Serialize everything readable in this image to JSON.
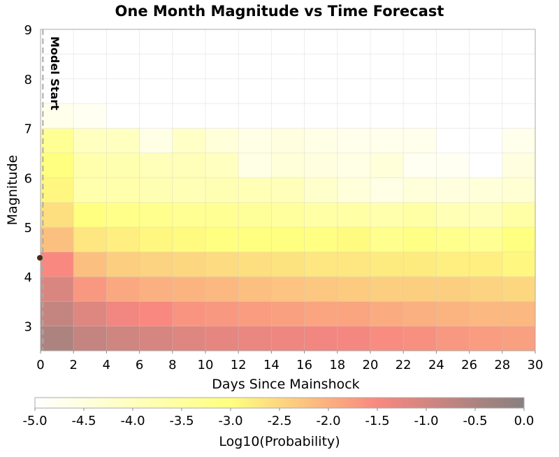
{
  "chart_data": {
    "type": "heatmap",
    "title": "One Month Magnitude vs Time Forecast",
    "xlabel": "Days Since Mainshock",
    "ylabel": "Magnitude",
    "xlim": [
      0,
      30
    ],
    "ylim": [
      2.5,
      9
    ],
    "grid": true,
    "x_ticks": [
      "0",
      "2",
      "4",
      "6",
      "8",
      "10",
      "12",
      "14",
      "16",
      "18",
      "20",
      "22",
      "24",
      "26",
      "28",
      "30"
    ],
    "y_ticks": [
      "3",
      "4",
      "5",
      "6",
      "7",
      "8",
      "9"
    ],
    "x_bin_edges": [
      0,
      2,
      4,
      6,
      8,
      10,
      12,
      14,
      16,
      18,
      20,
      22,
      24,
      26,
      28,
      30
    ],
    "y_bin_edges": [
      2.5,
      3,
      3.5,
      4,
      4.5,
      5,
      5.5,
      6,
      6.5,
      7,
      7.5
    ],
    "values_by_day_bin": [
      [
        -0.5,
        -0.8,
        -1.1,
        -1.5,
        -2.2,
        -2.6,
        -2.9,
        -3.0,
        -3.3,
        -4.7
      ],
      [
        -0.8,
        -1.15,
        -1.7,
        -2.2,
        -2.7,
        -3.0,
        -3.7,
        -3.7,
        -4.0,
        -4.8
      ],
      [
        -0.95,
        -1.4,
        -1.9,
        -2.4,
        -2.8,
        -3.15,
        -3.7,
        -3.75,
        -4.0,
        -5.0
      ],
      [
        -1.05,
        -1.5,
        -2.0,
        -2.45,
        -2.9,
        -3.2,
        -3.8,
        -3.9,
        -4.6,
        -5.0
      ],
      [
        -1.15,
        -1.65,
        -2.05,
        -2.5,
        -2.95,
        -3.3,
        -3.85,
        -3.9,
        -4.1,
        -5.0
      ],
      [
        -1.25,
        -1.7,
        -2.1,
        -2.55,
        -3.0,
        -3.3,
        -3.8,
        -4.0,
        -4.4,
        -5.0
      ],
      [
        -1.3,
        -1.75,
        -2.2,
        -2.6,
        -3.0,
        -3.4,
        -3.85,
        -4.6,
        -4.6,
        -5.0
      ],
      [
        -1.35,
        -1.8,
        -2.25,
        -2.65,
        -3.0,
        -3.45,
        -3.9,
        -4.4,
        -4.5,
        -5.0
      ],
      [
        -1.4,
        -1.85,
        -2.3,
        -2.7,
        -3.05,
        -3.6,
        -4.2,
        -4.5,
        -4.6,
        -5.0
      ],
      [
        -1.45,
        -1.85,
        -2.35,
        -2.7,
        -2.95,
        -3.6,
        -4.4,
        -4.6,
        -4.7,
        -5.0
      ],
      [
        -1.55,
        -1.95,
        -2.4,
        -2.75,
        -3.2,
        -3.7,
        -4.6,
        -4.4,
        -4.7,
        -5.0
      ],
      [
        -1.6,
        -2.0,
        -2.4,
        -2.75,
        -3.1,
        -3.6,
        -4.4,
        -4.8,
        -4.7,
        -5.0
      ],
      [
        -1.7,
        -2.05,
        -2.4,
        -2.8,
        -3.2,
        -3.85,
        -4.5,
        -4.8,
        -5.0,
        -5.0
      ],
      [
        -1.75,
        -2.1,
        -2.45,
        -2.8,
        -3.3,
        -3.9,
        -4.4,
        -5.0,
        -5.0,
        -5.0
      ],
      [
        -1.8,
        -2.1,
        -2.5,
        -2.9,
        -3.0,
        -3.6,
        -4.3,
        -4.5,
        -4.7,
        -5.0
      ]
    ],
    "annotation": {
      "label": "Model Start",
      "x": 0.1
    },
    "mainshock_point": {
      "x": 0,
      "y": 4.38,
      "color": "#4a2a10"
    },
    "colorbar": {
      "label": "Log10(Probability)",
      "range": [
        -5.0,
        0.0
      ],
      "ticks": [
        "-5.0",
        "-4.5",
        "-4.0",
        "-3.5",
        "-3.0",
        "-2.5",
        "-2.0",
        "-1.5",
        "-1.0",
        "-0.5",
        "0.0"
      ],
      "stops": [
        {
          "v": -5.0,
          "color": "#ffffff"
        },
        {
          "v": -3.0,
          "color": "#ffff80"
        },
        {
          "v": -1.5,
          "color": "#f88880"
        },
        {
          "v": 0.0,
          "color": "#888080"
        }
      ],
      "placement": "bottom"
    }
  }
}
